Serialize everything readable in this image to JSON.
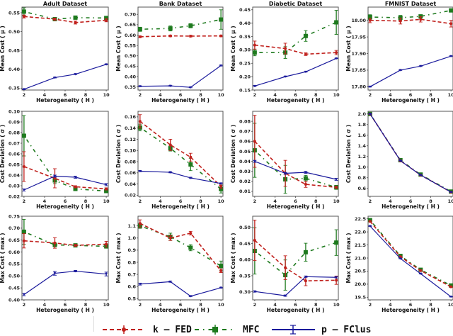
{
  "series_styles": {
    "k-FED": {
      "color": "#c0201c",
      "dash": "5,3",
      "marker": "circle"
    },
    "MFC": {
      "color": "#1e7a1e",
      "dash": "1.5,5,5,5",
      "marker": "square"
    },
    "p-FClus": {
      "color": "#1a1a9c",
      "dash": "",
      "marker": "tri"
    }
  },
  "legend": [
    {
      "key": "k-FED",
      "label": "k – FED"
    },
    {
      "key": "MFC",
      "label": "MFC"
    },
    {
      "key": "p-FClus",
      "label": "p – FClus"
    }
  ],
  "chart_data": [
    {
      "type": "line",
      "title": "Adult Dataset",
      "xlabel": "Heterogeneity ( H )",
      "ylabel": "Mean Cost ( μ )",
      "x": [
        2,
        5,
        7,
        10
      ],
      "xlim": [
        1.8,
        10.2
      ],
      "xticks": [
        2,
        4,
        6,
        8,
        10
      ],
      "ylim": [
        0.345,
        0.565
      ],
      "yticks": [
        0.35,
        0.4,
        0.45,
        0.5,
        0.55
      ],
      "ytick_labels": [
        "0.35",
        "0.40",
        "0.45",
        "0.50",
        "0.55"
      ],
      "series": [
        {
          "name": "k-FED",
          "values": [
            0.54,
            0.533,
            0.524,
            0.53
          ],
          "err": [
            0.004,
            0.003,
            0.004,
            0.004
          ]
        },
        {
          "name": "MFC",
          "values": [
            0.553,
            0.533,
            0.537,
            0.536
          ],
          "err": [
            0.01,
            0.003,
            0.004,
            0.003
          ]
        },
        {
          "name": "p-FClus",
          "values": [
            0.347,
            0.378,
            0.387,
            0.413
          ],
          "err": [
            0.001,
            0.001,
            0.001,
            0.001
          ]
        }
      ]
    },
    {
      "type": "line",
      "title": "Bank Dataset",
      "xlabel": "Heterogeneity ( H )",
      "ylabel": "Mean Cost ( μ )",
      "x": [
        2,
        5,
        7,
        10
      ],
      "xlim": [
        1.8,
        10.2
      ],
      "xticks": [
        2,
        4,
        6,
        8,
        10
      ],
      "ylim": [
        0.335,
        0.735
      ],
      "yticks": [
        0.35,
        0.4,
        0.45,
        0.5,
        0.55,
        0.6,
        0.65,
        0.7
      ],
      "ytick_labels": [
        "0.35",
        "0.40",
        "0.45",
        "0.50",
        "0.55",
        "0.60",
        "0.65",
        "0.70"
      ],
      "series": [
        {
          "name": "k-FED",
          "values": [
            0.592,
            0.596,
            0.595,
            0.596
          ],
          "err": [
            0.004,
            0.004,
            0.004,
            0.004
          ]
        },
        {
          "name": "MFC",
          "values": [
            0.628,
            0.632,
            0.645,
            0.675
          ],
          "err": [
            0.01,
            0.012,
            0.01,
            0.047
          ]
        },
        {
          "name": "p-FClus",
          "values": [
            0.353,
            0.355,
            0.348,
            0.453
          ],
          "err": [
            0.002,
            0.002,
            0.002,
            0.002
          ]
        }
      ]
    },
    {
      "type": "line",
      "title": "Diabetic Dataset",
      "xlabel": "Heterogeneity ( H )",
      "ylabel": "Mean Cost ( μ )",
      "x": [
        2,
        5,
        7,
        10
      ],
      "xlim": [
        1.8,
        10.2
      ],
      "xticks": [
        2,
        4,
        6,
        8,
        10
      ],
      "ylim": [
        0.15,
        0.46
      ],
      "yticks": [
        0.15,
        0.2,
        0.25,
        0.3,
        0.35,
        0.4,
        0.45
      ],
      "ytick_labels": [
        "0.15",
        "0.20",
        "0.25",
        "0.30",
        "0.35",
        "0.40",
        "0.45"
      ],
      "series": [
        {
          "name": "k-FED",
          "values": [
            0.318,
            0.305,
            0.284,
            0.29
          ],
          "err": [
            0.015,
            0.02,
            0.005,
            0.008
          ]
        },
        {
          "name": "MFC",
          "values": [
            0.29,
            0.29,
            0.352,
            0.403
          ],
          "err": [
            0.012,
            0.022,
            0.02,
            0.045
          ]
        },
        {
          "name": "p-FClus",
          "values": [
            0.165,
            0.2,
            0.218,
            0.268
          ],
          "err": [
            0.002,
            0.001,
            0.001,
            0.001
          ]
        }
      ]
    },
    {
      "type": "line",
      "title": "FMNIST Dataset",
      "xlabel": "Heterogeneity ( H )",
      "ylabel": "Mean Cost ( μ )",
      "x": [
        2,
        5,
        7,
        10
      ],
      "xlim": [
        1.8,
        10.2
      ],
      "xticks": [
        2,
        4,
        6,
        8,
        10
      ],
      "ylim": [
        17.79,
        18.04
      ],
      "yticks": [
        17.8,
        17.85,
        17.9,
        17.95,
        18.0
      ],
      "ytick_labels": [
        "17.80",
        "17.85",
        "17.90",
        "17.95",
        "18.00"
      ],
      "series": [
        {
          "name": "k-FED",
          "values": [
            18.0,
            17.998,
            18.003,
            17.99
          ],
          "err": [
            0.007,
            0.009,
            0.008,
            0.01
          ]
        },
        {
          "name": "MFC",
          "values": [
            18.01,
            18.008,
            18.012,
            18.03
          ],
          "err": [
            0.007,
            0.007,
            0.004,
            0.004
          ]
        },
        {
          "name": "p-FClus",
          "values": [
            17.8,
            17.85,
            17.862,
            17.892
          ],
          "err": [
            0.001,
            0.001,
            0.001,
            0.001
          ]
        }
      ]
    },
    {
      "type": "line",
      "title": "",
      "xlabel": "Heterogeneity ( H )",
      "ylabel": "Cost Deviation ( σ )",
      "x": [
        2,
        5,
        7,
        10
      ],
      "xlim": [
        1.8,
        10.2
      ],
      "xticks": [
        2,
        4,
        6,
        8,
        10
      ],
      "ylim": [
        0.02,
        0.1
      ],
      "yticks": [
        0.02,
        0.03,
        0.04,
        0.05,
        0.06,
        0.07,
        0.08,
        0.09,
        0.1
      ],
      "ytick_labels": [
        "0.02",
        "0.03",
        "0.04",
        "0.05",
        "0.06",
        "0.07",
        "0.08",
        "0.09",
        "0.10"
      ],
      "series": [
        {
          "name": "k-FED",
          "values": [
            0.048,
            0.037,
            0.029,
            0.027
          ],
          "err": [
            0.014,
            0.009,
            0.001,
            0.001
          ]
        },
        {
          "name": "MFC",
          "values": [
            0.077,
            0.035,
            0.027,
            0.025
          ],
          "err": [
            0.019,
            0.003,
            0.001,
            0.001
          ]
        },
        {
          "name": "p-FClus",
          "values": [
            0.026,
            0.039,
            0.038,
            0.031
          ],
          "err": [
            0.001,
            0.001,
            0.001,
            0.001
          ]
        }
      ]
    },
    {
      "type": "line",
      "title": "",
      "xlabel": "Heterogeneity ( H )",
      "ylabel": "Cost Deviation ( σ )",
      "x": [
        2,
        5,
        7,
        10
      ],
      "xlim": [
        1.8,
        10.2
      ],
      "xticks": [
        2,
        4,
        6,
        8,
        10
      ],
      "ylim": [
        0.018,
        0.17
      ],
      "yticks": [
        0.02,
        0.04,
        0.06,
        0.08,
        0.1,
        0.12,
        0.14,
        0.16
      ],
      "ytick_labels": [
        "0.02",
        "0.04",
        "0.06",
        "0.08",
        "0.10",
        "0.12",
        "0.14",
        "0.16"
      ],
      "series": [
        {
          "name": "k-FED",
          "values": [
            0.152,
            0.11,
            0.088,
            0.036
          ],
          "err": [
            0.012,
            0.01,
            0.007,
            0.004
          ]
        },
        {
          "name": "MFC",
          "values": [
            0.141,
            0.104,
            0.075,
            0.031
          ],
          "err": [
            0.006,
            0.005,
            0.011,
            0.007
          ]
        },
        {
          "name": "p-FClus",
          "values": [
            0.063,
            0.061,
            0.051,
            0.041
          ],
          "err": [
            0.001,
            0.001,
            0.001,
            0.001
          ]
        }
      ]
    },
    {
      "type": "line",
      "title": "",
      "xlabel": "Heterogeneity ( H )",
      "ylabel": "Cost Deviation ( σ )",
      "x": [
        2,
        5,
        7,
        10
      ],
      "xlim": [
        1.8,
        10.2
      ],
      "xticks": [
        2,
        4,
        6,
        8,
        10
      ],
      "ylim": [
        0.005,
        0.09
      ],
      "yticks": [
        0.01,
        0.02,
        0.03,
        0.04,
        0.05,
        0.06,
        0.07,
        0.08
      ],
      "ytick_labels": [
        "0.01",
        "0.02",
        "0.03",
        "0.04",
        "0.05",
        "0.06",
        "0.07",
        "0.08"
      ],
      "series": [
        {
          "name": "k-FED",
          "values": [
            0.06,
            0.028,
            0.017,
            0.014
          ],
          "err": [
            0.026,
            0.013,
            0.003,
            0.001
          ]
        },
        {
          "name": "MFC",
          "values": [
            0.051,
            0.022,
            0.023,
            0.014
          ],
          "err": [
            0.027,
            0.014,
            0.003,
            0.002
          ]
        },
        {
          "name": "p-FClus",
          "values": [
            0.04,
            0.028,
            0.029,
            0.022
          ],
          "err": [
            0.001,
            0.001,
            0.001,
            0.001
          ]
        }
      ]
    },
    {
      "type": "line",
      "title": "",
      "xlabel": "Heterogeneity ( H )",
      "ylabel": "Cost Deviation ( σ )",
      "x": [
        2,
        5,
        7,
        10
      ],
      "xlim": [
        1.8,
        10.2
      ],
      "xticks": [
        2,
        4,
        6,
        8,
        10
      ],
      "ylim": [
        0.45,
        2.05
      ],
      "yticks": [
        0.6,
        0.8,
        1.0,
        1.2,
        1.4,
        1.6,
        1.8,
        2.0
      ],
      "ytick_labels": [
        "0.6",
        "0.8",
        "1.0",
        "1.2",
        "1.4",
        "1.6",
        "1.8",
        "2.0"
      ],
      "series": [
        {
          "name": "k-FED",
          "values": [
            2.0,
            1.12,
            0.85,
            0.53
          ],
          "err": [
            0.01,
            0.01,
            0.01,
            0.01
          ]
        },
        {
          "name": "MFC",
          "values": [
            2.0,
            1.13,
            0.86,
            0.54
          ],
          "err": [
            0.01,
            0.01,
            0.01,
            0.01
          ]
        },
        {
          "name": "p-FClus",
          "values": [
            2.0,
            1.12,
            0.85,
            0.53
          ],
          "err": [
            0.005,
            0.005,
            0.005,
            0.005
          ]
        }
      ]
    },
    {
      "type": "line",
      "title": "",
      "xlabel": "Heterogeneity ( H )",
      "ylabel": "Max Cost ( max )",
      "x": [
        2,
        5,
        7,
        10
      ],
      "xlim": [
        1.8,
        10.2
      ],
      "xticks": [
        2,
        4,
        6,
        8,
        10
      ],
      "ylim": [
        0.4,
        0.75
      ],
      "yticks": [
        0.4,
        0.45,
        0.5,
        0.55,
        0.6,
        0.65,
        0.7,
        0.75
      ],
      "ytick_labels": [
        "0.40",
        "0.45",
        "0.50",
        "0.55",
        "0.60",
        "0.65",
        "0.70",
        "0.75"
      ],
      "series": [
        {
          "name": "k-FED",
          "values": [
            0.647,
            0.638,
            0.628,
            0.633
          ],
          "err": [
            0.03,
            0.022,
            0.004,
            0.012
          ]
        },
        {
          "name": "MFC",
          "values": [
            0.685,
            0.63,
            0.628,
            0.624
          ],
          "err": [
            0.052,
            0.008,
            0.004,
            0.008
          ]
        },
        {
          "name": "p-FClus",
          "values": [
            0.422,
            0.511,
            0.52,
            0.508
          ],
          "err": [
            0.005,
            0.008,
            0.003,
            0.008
          ]
        }
      ]
    },
    {
      "type": "line",
      "title": "",
      "xlabel": "Heterogeneity ( H )",
      "ylabel": "Max Cost ( max )",
      "x": [
        2,
        5,
        7,
        10
      ],
      "xlim": [
        1.8,
        10.2
      ],
      "xticks": [
        2,
        4,
        6,
        8,
        10
      ],
      "ylim": [
        0.49,
        1.18
      ],
      "yticks": [
        0.5,
        0.6,
        0.7,
        0.8,
        0.9,
        1.0,
        1.1
      ],
      "ytick_labels": [
        "0.5",
        "0.6",
        "0.7",
        "0.8",
        "0.9",
        "1.0",
        "1.1"
      ],
      "series": [
        {
          "name": "k-FED",
          "values": [
            1.12,
            1.0,
            1.04,
            0.73
          ],
          "err": [
            0.03,
            0.02,
            0.015,
            0.015
          ]
        },
        {
          "name": "MFC",
          "values": [
            1.1,
            1.01,
            0.92,
            0.77
          ],
          "err": [
            0.02,
            0.03,
            0.025,
            0.04
          ]
        },
        {
          "name": "p-FClus",
          "values": [
            0.62,
            0.64,
            0.52,
            0.59
          ],
          "err": [
            0.008,
            0.005,
            0.003,
            0.003
          ]
        }
      ]
    },
    {
      "type": "line",
      "title": "",
      "xlabel": "Heterogeneity ( H )",
      "ylabel": "Max Cost ( max )",
      "x": [
        2,
        5,
        7,
        10
      ],
      "xlim": [
        1.8,
        10.2
      ],
      "xticks": [
        2,
        4,
        6,
        8,
        10
      ],
      "ylim": [
        0.275,
        0.535
      ],
      "yticks": [
        0.3,
        0.35,
        0.4,
        0.45,
        0.5
      ],
      "ytick_labels": [
        "0.30",
        "0.35",
        "0.40",
        "0.45",
        "0.50"
      ],
      "series": [
        {
          "name": "k-FED",
          "values": [
            0.46,
            0.375,
            0.334,
            0.336
          ],
          "err": [
            0.063,
            0.037,
            0.015,
            0.013
          ]
        },
        {
          "name": "MFC",
          "values": [
            0.427,
            0.352,
            0.423,
            0.453
          ],
          "err": [
            0.072,
            0.047,
            0.028,
            0.04
          ]
        },
        {
          "name": "p-FClus",
          "values": [
            0.301,
            0.288,
            0.347,
            0.345
          ],
          "err": [
            0.002,
            0.002,
            0.002,
            0.002
          ]
        }
      ]
    },
    {
      "type": "line",
      "title": "",
      "xlabel": "Heterogeneity ( H )",
      "ylabel": "Max Cost ( max )",
      "x": [
        2,
        5,
        7,
        10
      ],
      "xlim": [
        1.8,
        10.2
      ],
      "xticks": [
        2,
        4,
        6,
        8,
        10
      ],
      "ylim": [
        19.4,
        22.6
      ],
      "yticks": [
        19.5,
        20.0,
        20.5,
        21.0,
        21.5,
        22.0,
        22.5
      ],
      "ytick_labels": [
        "19.5",
        "20.0",
        "20.5",
        "21.0",
        "21.5",
        "22.0",
        "22.5"
      ],
      "series": [
        {
          "name": "k-FED",
          "values": [
            22.4,
            21.05,
            20.52,
            19.9
          ],
          "err": [
            0.02,
            0.02,
            0.02,
            0.02
          ]
        },
        {
          "name": "MFC",
          "values": [
            22.45,
            21.08,
            20.55,
            19.95
          ],
          "err": [
            0.02,
            0.02,
            0.02,
            0.02
          ]
        },
        {
          "name": "p-FClus",
          "values": [
            22.22,
            20.98,
            20.4,
            19.52
          ],
          "err": [
            0.01,
            0.01,
            0.01,
            0.01
          ]
        }
      ]
    }
  ]
}
